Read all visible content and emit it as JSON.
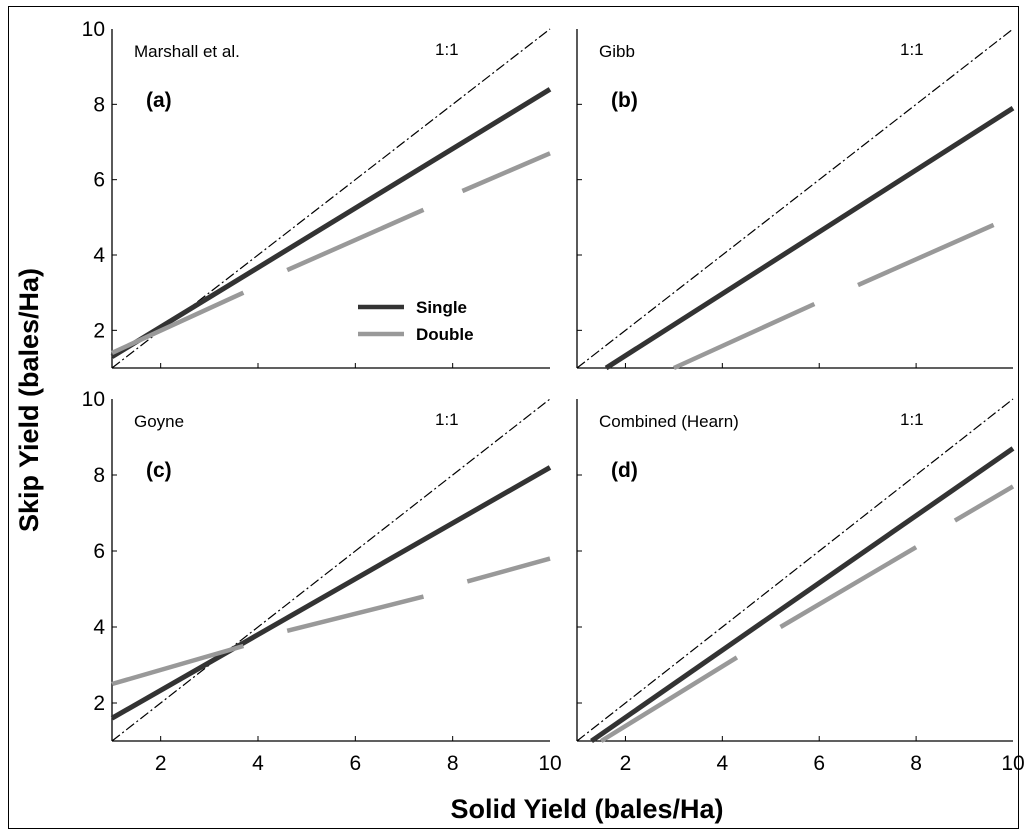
{
  "figure": {
    "xlabel": "Solid Yield (bales/Ha)",
    "ylabel": "Skip Yield (bales/Ha)"
  },
  "legend": {
    "placement": "inside panel (a), lower-right",
    "items": [
      {
        "label": "Single",
        "color": "#333333"
      },
      {
        "label": "Double",
        "color": "#999999"
      }
    ]
  },
  "colors": {
    "single": "#333333",
    "double": "#999999",
    "one_to_one": "#000000"
  },
  "chart_data": [
    {
      "type": "line",
      "title": "Marshall et al.",
      "panel_label": "(a)",
      "ref_label": "1:1",
      "xlim": [
        1,
        10
      ],
      "ylim": [
        1,
        10
      ],
      "x_ticks": [],
      "y_ticks": [
        "2",
        "4",
        "6",
        "8",
        "10"
      ],
      "grid": false,
      "series": [
        {
          "name": "Single",
          "segments": [
            [
              [
                1,
                1.3
              ],
              [
                10,
                8.4
              ]
            ]
          ]
        },
        {
          "name": "Double",
          "segments": [
            [
              [
                1,
                1.4
              ],
              [
                3.7,
                3.0
              ]
            ],
            [
              [
                4.6,
                3.6
              ],
              [
                7.4,
                5.2
              ]
            ],
            [
              [
                8.2,
                5.7
              ],
              [
                10,
                6.7
              ]
            ]
          ]
        }
      ]
    },
    {
      "type": "line",
      "title": "Gibb",
      "panel_label": "(b)",
      "ref_label": "1:1",
      "xlim": [
        1,
        10
      ],
      "ylim": [
        1,
        10
      ],
      "x_ticks": [],
      "y_ticks": [],
      "grid": false,
      "series": [
        {
          "name": "Single",
          "segments": [
            [
              [
                1.6,
                1.0
              ],
              [
                10,
                7.9
              ]
            ]
          ]
        },
        {
          "name": "Double",
          "segments": [
            [
              [
                3.0,
                1.0
              ],
              [
                5.9,
                2.7
              ]
            ],
            [
              [
                6.8,
                3.2
              ],
              [
                9.6,
                4.8
              ]
            ]
          ]
        }
      ]
    },
    {
      "type": "line",
      "title": "Goyne",
      "panel_label": "(c)",
      "ref_label": "1:1",
      "xlim": [
        1,
        10
      ],
      "ylim": [
        1,
        10
      ],
      "x_ticks": [
        "2",
        "4",
        "6",
        "8",
        "10"
      ],
      "y_ticks": [
        "2",
        "4",
        "6",
        "8",
        "10"
      ],
      "grid": false,
      "series": [
        {
          "name": "Single",
          "segments": [
            [
              [
                1,
                1.6
              ],
              [
                10,
                8.2
              ]
            ]
          ]
        },
        {
          "name": "Double",
          "segments": [
            [
              [
                1,
                2.5
              ],
              [
                3.7,
                3.5
              ]
            ],
            [
              [
                4.6,
                3.9
              ],
              [
                7.4,
                4.8
              ]
            ],
            [
              [
                8.3,
                5.2
              ],
              [
                10,
                5.8
              ]
            ]
          ]
        }
      ]
    },
    {
      "type": "line",
      "title": "Combined (Hearn)",
      "panel_label": "(d)",
      "ref_label": "1:1",
      "xlim": [
        1,
        10
      ],
      "ylim": [
        1,
        10
      ],
      "x_ticks": [
        "2",
        "4",
        "6",
        "8",
        "10"
      ],
      "y_ticks": [],
      "grid": false,
      "series": [
        {
          "name": "Single",
          "segments": [
            [
              [
                1.3,
                1.0
              ],
              [
                10,
                8.7
              ]
            ]
          ]
        },
        {
          "name": "Double",
          "segments": [
            [
              [
                1.5,
                1.0
              ],
              [
                4.3,
                3.2
              ]
            ],
            [
              [
                5.2,
                4.0
              ],
              [
                8.0,
                6.1
              ]
            ],
            [
              [
                8.8,
                6.8
              ],
              [
                10,
                7.7
              ]
            ]
          ]
        }
      ]
    }
  ]
}
